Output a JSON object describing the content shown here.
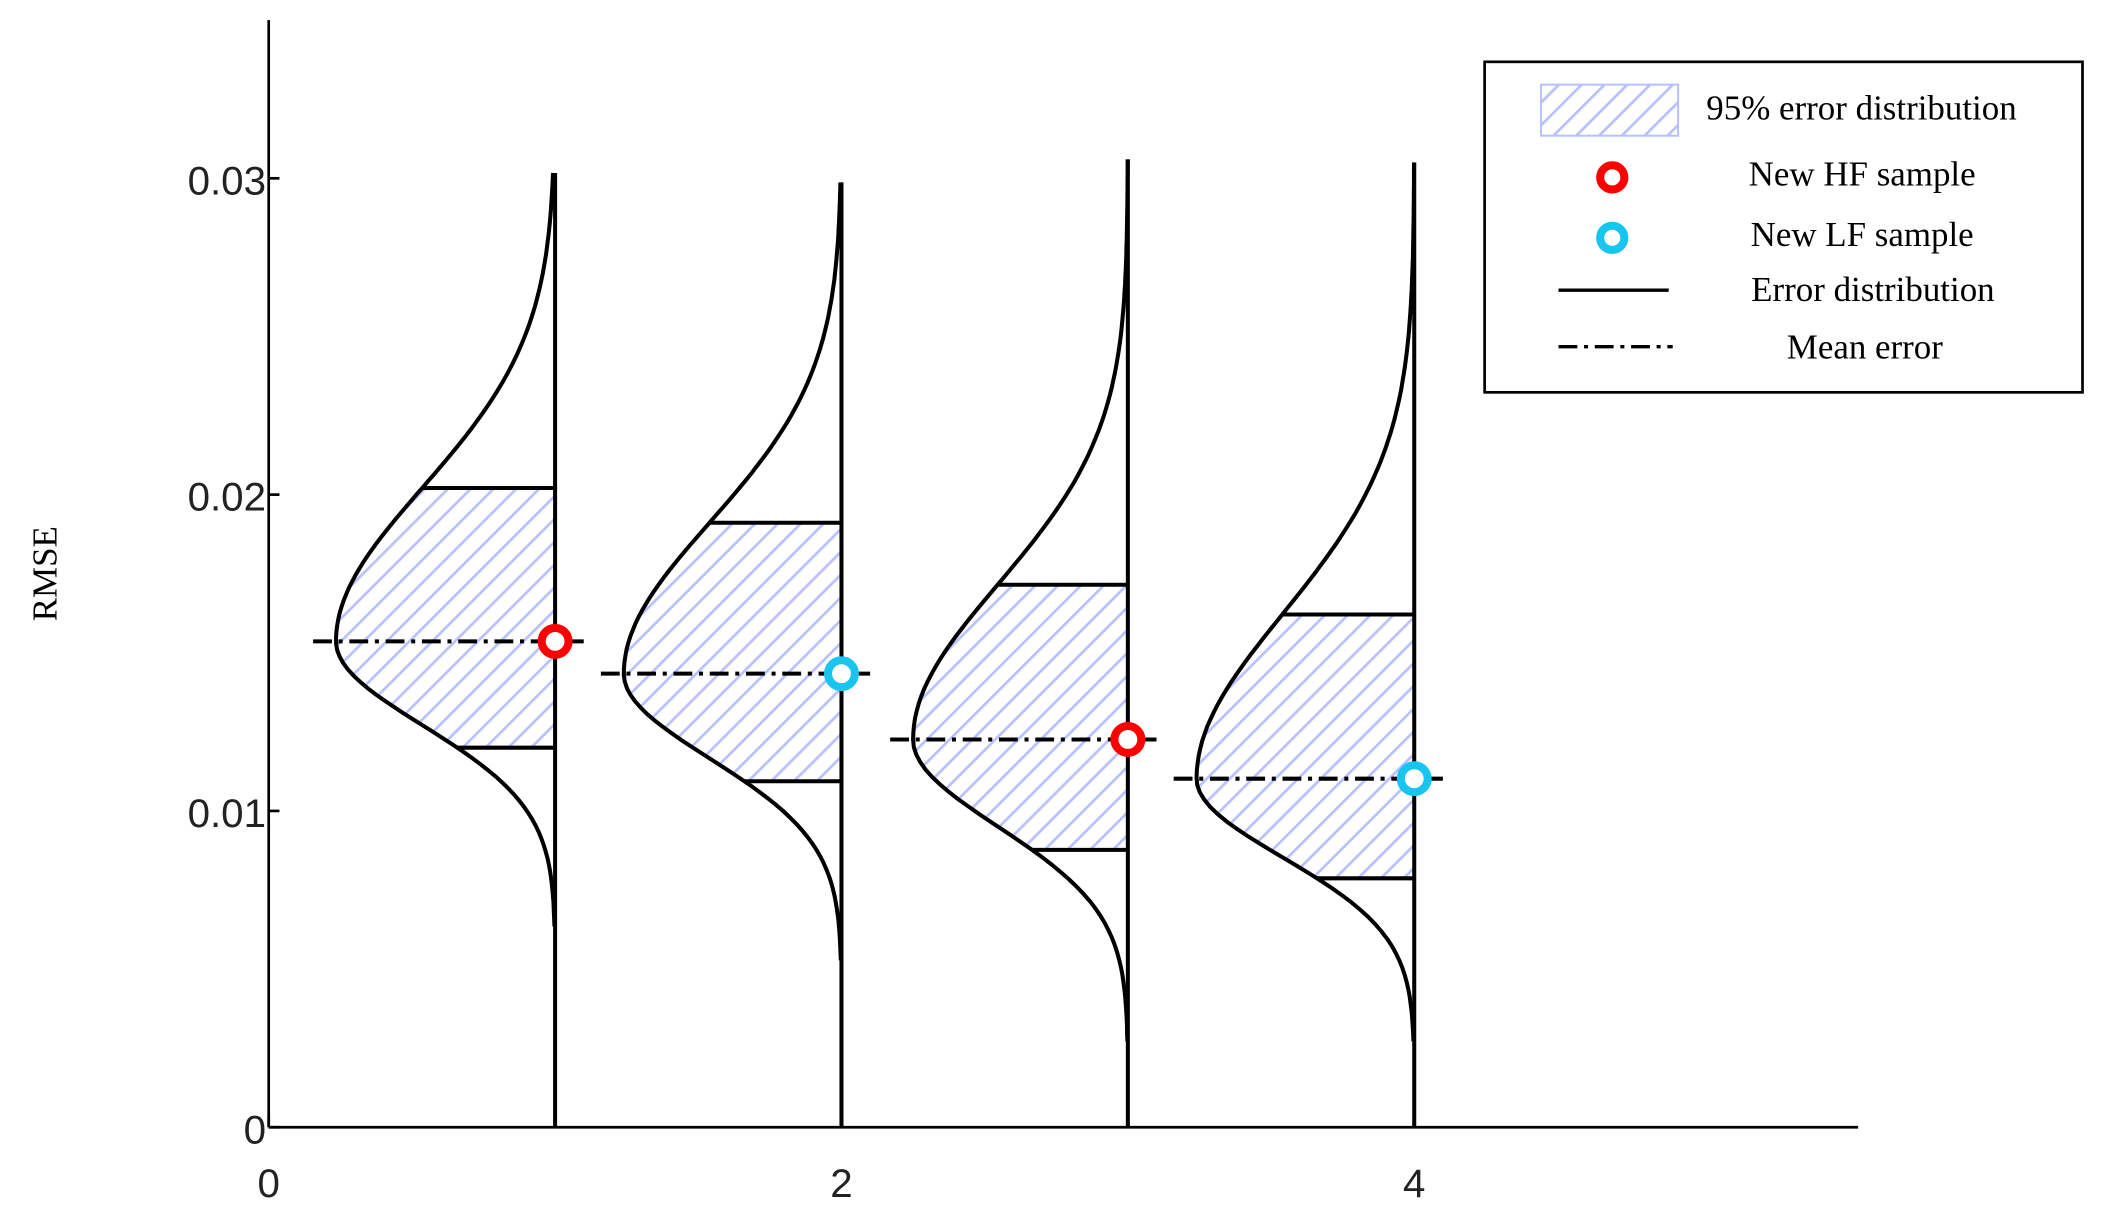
{
  "chart_data": {
    "type": "error-distribution",
    "y_label": "RMSE",
    "xlim": [
      0,
      5.55
    ],
    "xticks": [
      0,
      2,
      4
    ],
    "ylim": [
      0,
      0.035
    ],
    "yticks": [
      0,
      0.01,
      0.02,
      0.03
    ],
    "fill_label": "95% error distribution",
    "fill_color": "#b8c0ff",
    "curve_label": "Error distribution",
    "mean_label": "Mean error",
    "markers": [
      {
        "name": "New HF sample",
        "color": "#ff0000"
      },
      {
        "name": "New LF sample",
        "color": "#18c4f0"
      }
    ],
    "distributions": [
      {
        "x": 1,
        "marker": 0,
        "mean": 0.01536,
        "lower": 0.012,
        "upper": 0.02021,
        "min": 0.00634,
        "max": 0.03017,
        "width": 0.765
      },
      {
        "x": 2,
        "marker": 1,
        "mean": 0.01434,
        "lower": 0.01094,
        "upper": 0.01911,
        "min": 0.00528,
        "max": 0.02987,
        "width": 0.76
      },
      {
        "x": 3,
        "marker": 0,
        "mean": 0.01226,
        "lower": 0.00877,
        "upper": 0.01715,
        "min": 0.00272,
        "max": 0.0306,
        "width": 0.75
      },
      {
        "x": 4,
        "marker": 1,
        "mean": 0.01102,
        "lower": 0.00787,
        "upper": 0.01621,
        "min": 0.00272,
        "max": 0.0305,
        "width": 0.76
      }
    ]
  }
}
